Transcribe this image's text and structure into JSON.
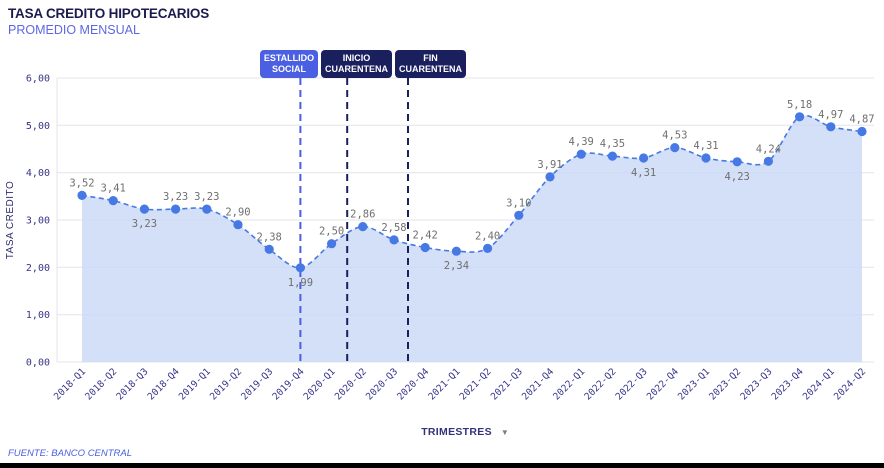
{
  "header": {
    "title": "TASA CREDITO HIPOTECARIOS",
    "subtitle": "PROMEDIO MENSUAL"
  },
  "footer": {
    "source": "FUENTE: BANCO CENTRAL"
  },
  "icons": {
    "dropdown": "▼"
  },
  "colors": {
    "title": "#1b1b4d",
    "subtitle": "#5c68e2",
    "accent_blue": "#4a5fe1",
    "accent_navy": "#1a1f5e",
    "source": "#4a5fe1"
  },
  "chart_data": {
    "type": "area",
    "title": "TASA CREDITO HIPOTECARIOS",
    "subtitle": "PROMEDIO MENSUAL",
    "xlabel": "TRIMESTRES",
    "ylabel": "TASA CREDITO",
    "categories": [
      "2018-Q1",
      "2018-Q2",
      "2018-Q3",
      "2018-Q4",
      "2019-Q1",
      "2019-Q2",
      "2019-Q3",
      "2019-Q4",
      "2020-Q1",
      "2020-Q2",
      "2020-Q3",
      "2020-Q4",
      "2021-Q1",
      "2021-Q2",
      "2021-Q3",
      "2021-Q4",
      "2022-Q1",
      "2022-Q2",
      "2022-Q3",
      "2022-Q4",
      "2023-Q1",
      "2023-Q2",
      "2023-Q3",
      "2023-Q4",
      "2024-Q1",
      "2024-Q2"
    ],
    "values": [
      3.52,
      3.41,
      3.23,
      3.23,
      3.23,
      2.9,
      2.38,
      1.99,
      2.5,
      2.86,
      2.58,
      2.42,
      2.34,
      2.4,
      3.1,
      3.91,
      4.39,
      4.35,
      4.31,
      4.53,
      4.31,
      4.23,
      4.24,
      5.18,
      4.97,
      4.87
    ],
    "point_labels": [
      "3,52",
      "3,41",
      "3,23",
      "3,23",
      "3,23",
      "2,90",
      "2,38",
      "1,99",
      "2,50",
      "2,86",
      "2,58",
      "2,42",
      "2,34",
      "2,40",
      "3,10",
      "3,91",
      "4,39",
      "4,35",
      "4,31",
      "4,53",
      "4,31",
      "4,23",
      "4,24",
      "5,18",
      "4,97",
      "4,87"
    ],
    "label_positions": [
      "above",
      "above",
      "below",
      "above",
      "above",
      "above",
      "above",
      "below",
      "above",
      "above",
      "above",
      "above",
      "below",
      "above",
      "above",
      "above",
      "above",
      "above",
      "below",
      "above",
      "above",
      "below",
      "above",
      "above",
      "above",
      "above"
    ],
    "ylim": [
      0,
      6
    ],
    "ytick_labels": [
      "0,00",
      "1,00",
      "2,00",
      "3,00",
      "4,00",
      "5,00",
      "6,00"
    ],
    "grid": true,
    "line_style": "dashed",
    "legend": "none",
    "colors": {
      "line": "#4679e4",
      "point": "#4679e4",
      "fill": "#c9d8f6",
      "point_label": "#6f6f6f",
      "axis_text": "#35358a",
      "grid": "#e4e4ea"
    },
    "annotations": [
      {
        "label": "ESTALLIDO SOCIAL",
        "x_index": 7,
        "line_color": "#4a5fe1",
        "chip_bg": "#4a5fe1"
      },
      {
        "label": "INICIO CUARENTENA",
        "x_index": 8.5,
        "line_color": "#1a1f5e",
        "chip_bg": "#1a1f5e"
      },
      {
        "label": "FIN CUARENTENA",
        "x_index": 10.45,
        "line_color": "#1a1f5e",
        "chip_bg": "#1a1f5e"
      }
    ]
  }
}
